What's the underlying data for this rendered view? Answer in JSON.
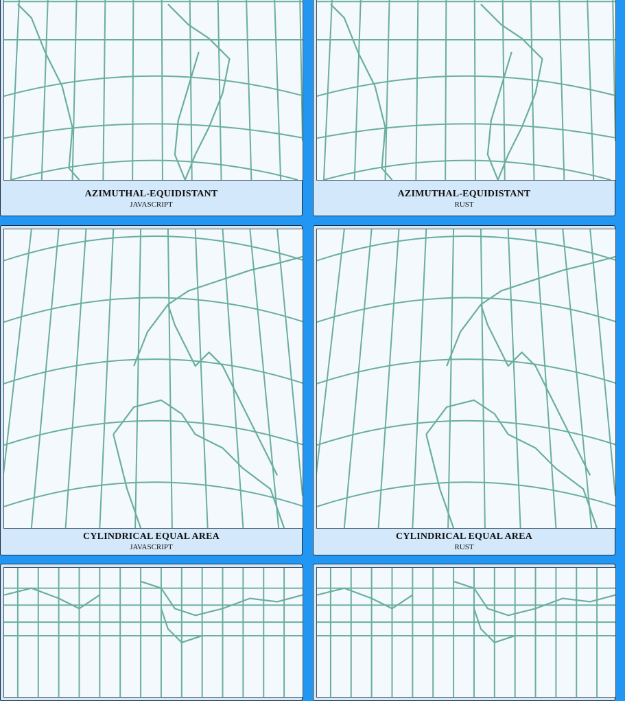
{
  "cards": [
    {
      "title": "AZIMUTHAL-EQUIDISTANT",
      "language": "JAVASCRIPT"
    },
    {
      "title": "AZIMUTHAL-EQUIDISTANT",
      "language": "RUST"
    },
    {
      "title": "CYLINDRICAL EQUAL AREA",
      "language": "JAVASCRIPT"
    },
    {
      "title": "CYLINDRICAL EQUAL AREA",
      "language": "RUST"
    },
    {
      "title": "",
      "language": ""
    },
    {
      "title": "",
      "language": ""
    }
  ],
  "colors": {
    "background": "#2196f3",
    "card": "#d3e8fa",
    "map_fill": "#f3f9fc",
    "map_lines": "#6aae9e"
  }
}
